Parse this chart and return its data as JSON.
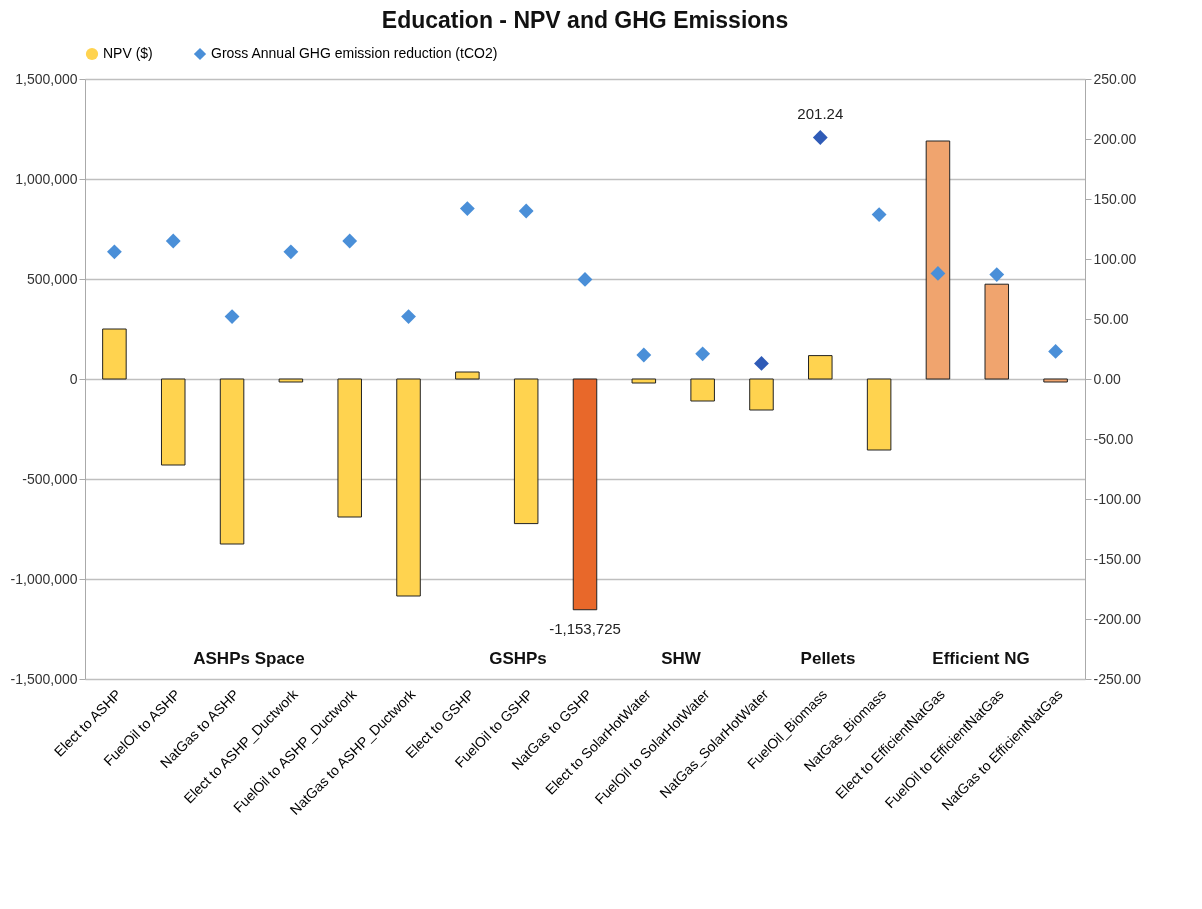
{
  "chart_data": {
    "type": "bar",
    "title": "Education - NPV and GHG Emissions",
    "categories": [
      "Elect to ASHP",
      "FuelOil to ASHP",
      "NatGas to ASHP",
      "Elect to ASHP_Ductwork",
      "FuelOil to ASHP_Ductwork",
      "NatGas to ASHP_Ductwork",
      "Elect to GSHP",
      "FuelOil to GSHP",
      "NatGas to GSHP",
      "Elect to SolarHotWater",
      "FuelOil to SolarHotWater",
      "NatGas_SolarHotWater",
      "FuelOil_Biomass",
      "NatGas_Biomass",
      "Elect to EfficientNatGas",
      "FuelOil to EfficientNatGas",
      "NatGas to EfficientNatGas"
    ],
    "series": [
      {
        "name": "NPV ($)",
        "colors": [
          "#ffd34f",
          "#ffd34f",
          "#ffd34f",
          "#ffd34f",
          "#ffd34f",
          "#ffd34f",
          "#ffd34f",
          "#ffd34f",
          "#e8682a",
          "#ffd34f",
          "#ffd34f",
          "#ffd34f",
          "#ffd34f",
          "#ffd34f",
          "#f0a46e",
          "#f0a46e",
          "#f0a46e"
        ],
        "values": [
          250000,
          -430000,
          -825000,
          -15000,
          -690000,
          -1085000,
          35000,
          -723000,
          -1153725,
          -20000,
          -110000,
          -155000,
          117000,
          -355000,
          1190000,
          474000,
          -15000
        ],
        "value_labels": [
          null,
          null,
          null,
          null,
          null,
          null,
          null,
          null,
          "-1,153,725",
          null,
          null,
          null,
          null,
          null,
          null,
          null,
          null
        ]
      },
      {
        "name": "Gross Annual GHG emission reduction (tCO2)",
        "type": "scatter",
        "axis": "y2",
        "marker": "diamond",
        "colors": [
          "#4a8fd8",
          "#4a8fd8",
          "#4a8fd8",
          "#4a8fd8",
          "#4a8fd8",
          "#4a8fd8",
          "#4a8fd8",
          "#4a8fd8",
          "#4a8fd8",
          "#4a8fd8",
          "#4a8fd8",
          "#2f5bb7",
          "#2f5bb7",
          "#4a8fd8",
          "#4a8fd8",
          "#4a8fd8",
          "#4a8fd8"
        ],
        "values": [
          106,
          115,
          52,
          106,
          115,
          52,
          142,
          140,
          83,
          20,
          21,
          13,
          201.24,
          137,
          88,
          87,
          23
        ],
        "value_labels": [
          null,
          null,
          null,
          null,
          null,
          null,
          null,
          null,
          null,
          null,
          null,
          null,
          "201.24",
          null,
          null,
          null,
          null
        ]
      }
    ],
    "ylim": [
      -1500000,
      1500000
    ],
    "yticks": [
      {
        "value": -1500000,
        "label": "-1,500,000"
      },
      {
        "value": -1000000,
        "label": "-1,000,000"
      },
      {
        "value": -500000,
        "label": "-500,000"
      },
      0,
      {
        "value": 500000,
        "label": "500,000"
      },
      {
        "value": 1000000,
        "label": "1,000,000"
      },
      {
        "value": 1500000,
        "label": "1,500,000"
      }
    ],
    "y2lim": [
      -250,
      250
    ],
    "y2ticks": [
      {
        "value": -250,
        "label": "-250.00"
      },
      {
        "value": -200,
        "label": "-200.00"
      },
      {
        "value": -150,
        "label": "-150.00"
      },
      {
        "value": -100,
        "label": "-100.00"
      },
      {
        "value": -50,
        "label": "-50.00"
      },
      {
        "value": 0,
        "label": "0.00"
      },
      {
        "value": 50,
        "label": "50.00"
      },
      {
        "value": 100,
        "label": "100.00"
      },
      {
        "value": 150,
        "label": "150.00"
      },
      {
        "value": 200,
        "label": "200.00"
      },
      {
        "value": 250,
        "label": "250.00"
      }
    ],
    "grid": "y",
    "legend": "top",
    "annotations": [
      "ASHPs Space",
      "GSHPs",
      "SHW",
      "Pellets",
      "Efficient NG"
    ]
  }
}
